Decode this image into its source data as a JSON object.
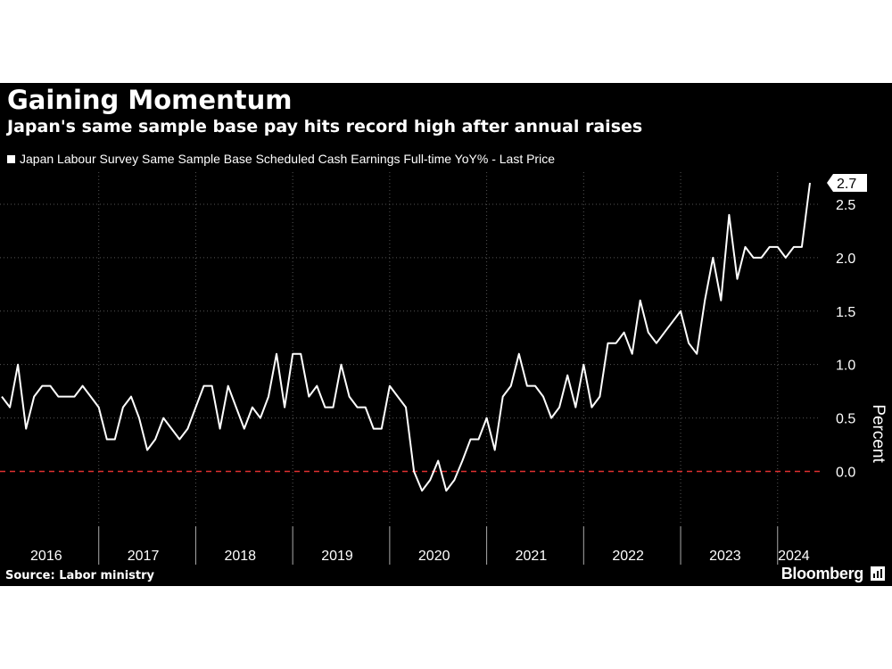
{
  "header": {
    "title": "Gaining Momentum",
    "subtitle": "Japan's same sample base pay hits record high after annual raises"
  },
  "footer": {
    "source": "Source: Labor ministry",
    "brand": "Bloomberg"
  },
  "colors": {
    "background": "#000000",
    "line": "#ffffff",
    "zero_line": "#e03030",
    "grid": "#555555",
    "text": "#ffffff"
  },
  "chart_data": {
    "type": "line",
    "ylabel": "Percent",
    "ylim": [
      -0.48,
      2.8
    ],
    "yticks": [
      "0.0",
      "0.5",
      "1.0",
      "1.5",
      "2.0",
      "2.5"
    ],
    "ytick_values": [
      0.0,
      0.5,
      1.0,
      1.5,
      2.0,
      2.5
    ],
    "year_labels": [
      "2016",
      "2017",
      "2018",
      "2019",
      "2020",
      "2021",
      "2022",
      "2023",
      "2024"
    ],
    "x_start": "2016-01",
    "x_end": "2024-05",
    "grid": true,
    "zero_line_dashed": true,
    "last_value_label": "2.7",
    "series": [
      {
        "name": "Japan Labour Survey Same Sample Base Scheduled Cash Earnings Full-time YoY% - Last Price",
        "x": [
          "2016-01",
          "2016-02",
          "2016-03",
          "2016-04",
          "2016-05",
          "2016-06",
          "2016-07",
          "2016-08",
          "2016-09",
          "2016-10",
          "2016-11",
          "2016-12",
          "2017-01",
          "2017-02",
          "2017-03",
          "2017-04",
          "2017-05",
          "2017-06",
          "2017-07",
          "2017-08",
          "2017-09",
          "2017-10",
          "2017-11",
          "2017-12",
          "2018-01",
          "2018-02",
          "2018-03",
          "2018-04",
          "2018-05",
          "2018-06",
          "2018-07",
          "2018-08",
          "2018-09",
          "2018-10",
          "2018-11",
          "2018-12",
          "2019-01",
          "2019-02",
          "2019-03",
          "2019-04",
          "2019-05",
          "2019-06",
          "2019-07",
          "2019-08",
          "2019-09",
          "2019-10",
          "2019-11",
          "2019-12",
          "2020-01",
          "2020-02",
          "2020-03",
          "2020-04",
          "2020-05",
          "2020-06",
          "2020-07",
          "2020-08",
          "2020-09",
          "2020-10",
          "2020-11",
          "2020-12",
          "2021-01",
          "2021-02",
          "2021-03",
          "2021-04",
          "2021-05",
          "2021-06",
          "2021-07",
          "2021-08",
          "2021-09",
          "2021-10",
          "2021-11",
          "2021-12",
          "2022-01",
          "2022-02",
          "2022-03",
          "2022-04",
          "2022-05",
          "2022-06",
          "2022-07",
          "2022-08",
          "2022-09",
          "2022-10",
          "2022-11",
          "2022-12",
          "2023-01",
          "2023-02",
          "2023-03",
          "2023-04",
          "2023-05",
          "2023-06",
          "2023-07",
          "2023-08",
          "2023-09",
          "2023-10",
          "2023-11",
          "2023-12",
          "2024-01",
          "2024-02",
          "2024-03",
          "2024-04",
          "2024-05"
        ],
        "values": [
          0.7,
          0.6,
          1.0,
          0.4,
          0.7,
          0.8,
          0.8,
          0.7,
          0.7,
          0.7,
          0.8,
          0.7,
          0.6,
          0.3,
          0.3,
          0.6,
          0.7,
          0.5,
          0.2,
          0.3,
          0.5,
          0.4,
          0.3,
          0.4,
          0.6,
          0.8,
          0.8,
          0.4,
          0.8,
          0.6,
          0.4,
          0.6,
          0.5,
          0.7,
          1.1,
          0.6,
          1.1,
          1.1,
          0.7,
          0.8,
          0.6,
          0.6,
          1.0,
          0.7,
          0.6,
          0.6,
          0.4,
          0.4,
          0.8,
          0.7,
          0.6,
          0.0,
          -0.18,
          -0.08,
          0.1,
          -0.18,
          -0.08,
          0.1,
          0.3,
          0.3,
          0.5,
          0.2,
          0.7,
          0.8,
          1.1,
          0.8,
          0.8,
          0.7,
          0.5,
          0.6,
          0.9,
          0.6,
          1.0,
          0.6,
          0.7,
          1.2,
          1.2,
          1.3,
          1.1,
          1.6,
          1.3,
          1.2,
          1.3,
          1.4,
          1.5,
          1.2,
          1.1,
          1.6,
          2.0,
          1.6,
          2.4,
          1.8,
          2.1,
          2.0,
          2.0,
          2.1,
          2.1,
          2.0,
          2.1,
          2.1,
          2.7
        ]
      }
    ]
  }
}
